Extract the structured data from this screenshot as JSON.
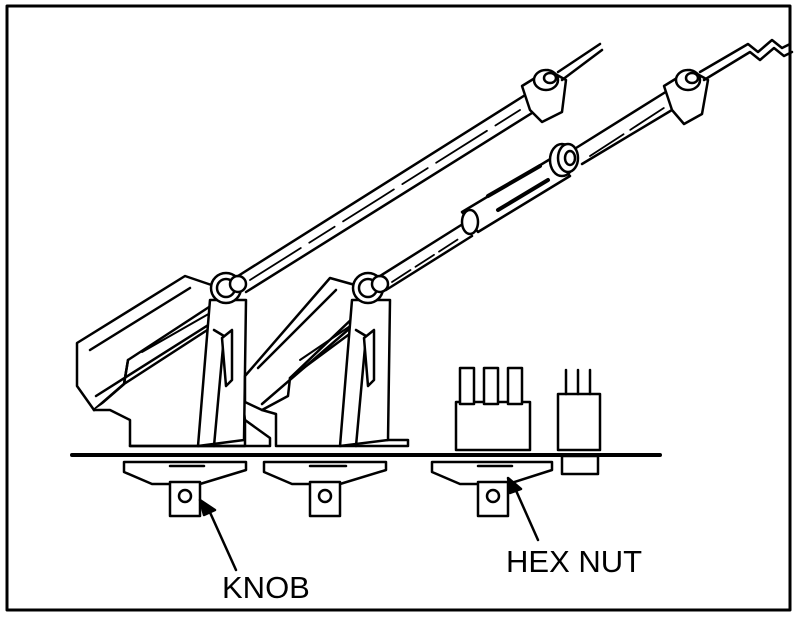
{
  "labels": {
    "knob": "KNOB",
    "hex_nut": "HEX NUT"
  },
  "colors": {
    "line": "#000000",
    "background": "#ffffff"
  }
}
